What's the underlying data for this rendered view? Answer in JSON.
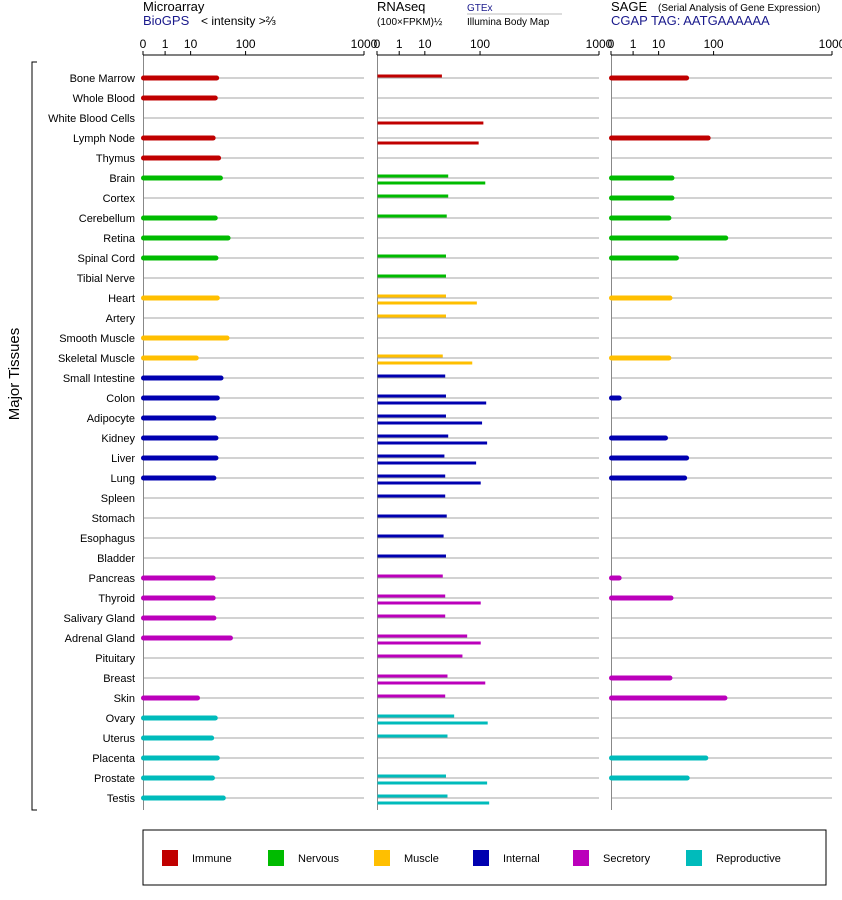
{
  "panel_headers": {
    "microarray": {
      "title": "Microarray",
      "source": "BioGPS",
      "scale_note": "< intensity >⅔"
    },
    "rnaseq": {
      "title": "RNAseq",
      "scale_note": "(100×FPKM)½",
      "source_top": "GTEx",
      "source_bottom": "Illumina Body Map"
    },
    "sage": {
      "title": "SAGE",
      "subtitle": "(Serial Analysis of Gene Expression)",
      "tag_line": "CGAP  TAG: AATGAAAAAA"
    }
  },
  "y_group_label": "Major Tissues",
  "axis_ticks": [
    "0",
    "1",
    "10",
    "100",
    "1000"
  ],
  "legend": [
    {
      "label": "Immune",
      "color": "#c00000"
    },
    {
      "label": "Nervous",
      "color": "#00bb00"
    },
    {
      "label": "Muscle",
      "color": "#ffbf00"
    },
    {
      "label": "Internal",
      "color": "#0000b0"
    },
    {
      "label": "Secretory",
      "color": "#bb00bb"
    },
    {
      "label": "Reproductive",
      "color": "#00bbbb"
    }
  ],
  "chart_data": {
    "type": "bar",
    "orientation": "horizontal",
    "x_scale": "power-transformed (ticks 0, 1, 10, 100, 1000)",
    "xlim": [
      0,
      1000
    ],
    "grid": true,
    "legend_position": "bottom",
    "categories": [
      "Bone Marrow",
      "Whole Blood",
      "White Blood Cells",
      "Lymph Node",
      "Thymus",
      "Brain",
      "Cortex",
      "Cerebellum",
      "Retina",
      "Spinal Cord",
      "Tibial Nerve",
      "Heart",
      "Artery",
      "Smooth Muscle",
      "Skeletal Muscle",
      "Small Intestine",
      "Colon",
      "Adipocyte",
      "Kidney",
      "Liver",
      "Lung",
      "Spleen",
      "Stomach",
      "Esophagus",
      "Bladder",
      "Pancreas",
      "Thyroid",
      "Salivary Gland",
      "Adrenal Gland",
      "Pituitary",
      "Breast",
      "Skin",
      "Ovary",
      "Uterus",
      "Placenta",
      "Prostate",
      "Testis"
    ],
    "category_groups": [
      "Immune",
      "Immune",
      "Immune",
      "Immune",
      "Immune",
      "Nervous",
      "Nervous",
      "Nervous",
      "Nervous",
      "Nervous",
      "Nervous",
      "Muscle",
      "Muscle",
      "Muscle",
      "Muscle",
      "Internal",
      "Internal",
      "Internal",
      "Internal",
      "Internal",
      "Internal",
      "Internal",
      "Internal",
      "Internal",
      "Internal",
      "Secretory",
      "Secretory",
      "Secretory",
      "Secretory",
      "Secretory",
      "Secretory",
      "Secretory",
      "Reproductive",
      "Reproductive",
      "Reproductive",
      "Reproductive",
      "Reproductive"
    ],
    "series": [
      {
        "values": [
          37,
          35,
          null,
          32,
          40,
          43,
          null,
          35,
          57,
          36,
          null,
          38,
          null,
          55,
          14,
          44,
          38,
          33,
          36,
          36,
          33,
          null,
          null,
          null,
          null,
          32,
          32,
          33,
          62,
          null,
          null,
          15,
          35,
          30,
          38,
          31,
          48
        ]
      },
      {
        "values": [
          25,
          null,
          null,
          null,
          null,
          33,
          33,
          31,
          null,
          30,
          30,
          30,
          30,
          null,
          26,
          29,
          30,
          30,
          33,
          28,
          29,
          29,
          31,
          27,
          30,
          26,
          29,
          29,
          67,
          57,
          32,
          29,
          42,
          32,
          null,
          30,
          32
        ]
      },
      {
        "values": [
          null,
          null,
          110,
          96,
          null,
          116,
          null,
          null,
          null,
          null,
          null,
          91,
          null,
          null,
          79,
          null,
          119,
          106,
          122,
          89,
          102,
          null,
          null,
          null,
          null,
          null,
          102,
          null,
          102,
          null,
          116,
          null,
          124,
          null,
          null,
          122,
          129
        ]
      },
      {
        "values": [
          40,
          null,
          null,
          85,
          null,
          21,
          21,
          18,
          140,
          26,
          null,
          19,
          null,
          null,
          18,
          null,
          0.05,
          null,
          15,
          40,
          37,
          null,
          null,
          null,
          null,
          0.05,
          20,
          null,
          null,
          null,
          19,
          137,
          null,
          null,
          79,
          41,
          null
        ]
      }
    ]
  }
}
